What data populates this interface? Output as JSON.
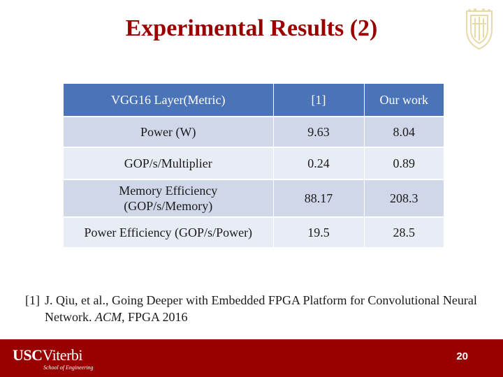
{
  "slide": {
    "title": "Experimental Results (2)",
    "page_number": "20"
  },
  "table": {
    "headers": [
      "VGG16 Layer(Metric)",
      "[1]",
      "Our work"
    ],
    "rows": [
      {
        "metric": "Power (W)",
        "ref1": "9.63",
        "ours": "8.04"
      },
      {
        "metric": "GOP/s/Multiplier",
        "ref1": "0.24",
        "ours": "0.89"
      },
      {
        "metric_line1": "Memory Efficiency",
        "metric_line2": "(GOP/s/Memory)",
        "ref1": "88.17",
        "ours": "208.3"
      },
      {
        "metric": "Power Efficiency (GOP/s/Power)",
        "ref1": "19.5",
        "ours": "28.5"
      }
    ]
  },
  "reference": {
    "number": "[1]",
    "text_before": "J. Qiu, et al., Going Deeper with Embedded FPGA Platform for Convolutional Neural Network. ",
    "venue": "ACM",
    "text_after": ", FPGA 2016"
  },
  "footer": {
    "logo_usc": "USC",
    "logo_viterbi": "Viterbi",
    "logo_school": "School of Engineering"
  },
  "colors": {
    "title": "#9a0000",
    "header_bg": "#4a73b8",
    "row_dark": "#cfd7e8",
    "row_light": "#e8ecf4",
    "footer_bg": "#990000"
  },
  "icons": {
    "seal": "usc-seal-icon"
  }
}
